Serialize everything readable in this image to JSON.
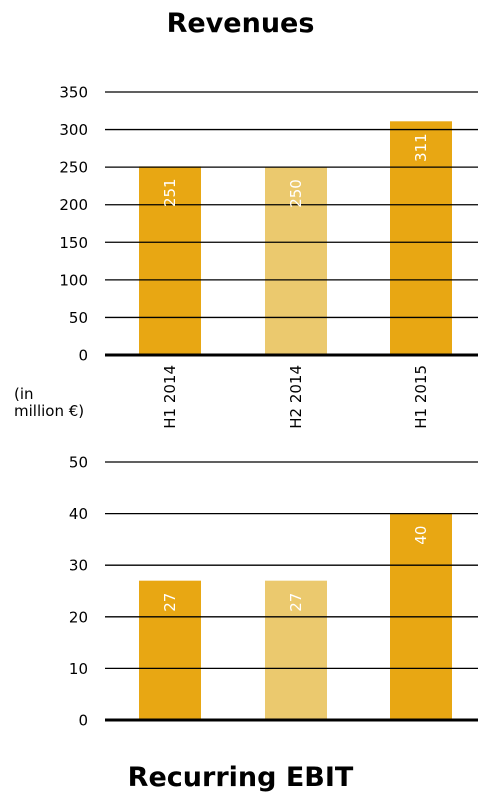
{
  "unit_label": "(in\nmillion €)",
  "chart_data": [
    {
      "type": "bar",
      "title": "Revenues",
      "categories": [
        "H1 2014",
        "H2 2014",
        "H1 2015"
      ],
      "values": [
        251,
        250,
        311
      ],
      "bar_colors": [
        "#e8a713",
        "#ebc96e",
        "#e8a713"
      ],
      "ylim": [
        0,
        350
      ],
      "yticks": [
        0,
        50,
        100,
        150,
        200,
        250,
        300,
        350
      ],
      "grid": true,
      "xlabel": "",
      "ylabel": ""
    },
    {
      "type": "bar",
      "title": "Recurring EBIT",
      "categories": [
        "H1 2014",
        "H2 2014",
        "H1 2015"
      ],
      "values": [
        27,
        27,
        40
      ],
      "bar_colors": [
        "#e8a713",
        "#ebc96e",
        "#e8a713"
      ],
      "ylim": [
        0,
        50
      ],
      "yticks": [
        0,
        10,
        20,
        30,
        40,
        50
      ],
      "grid": true,
      "xlabel": "",
      "ylabel": ""
    }
  ]
}
